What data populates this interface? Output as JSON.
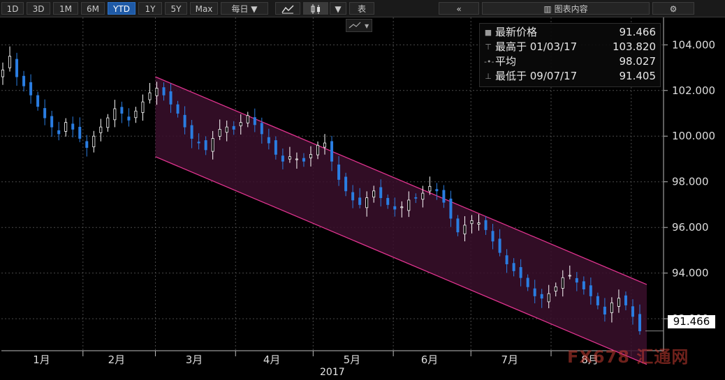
{
  "toolbar": {
    "periods": [
      "1D",
      "3D",
      "1M",
      "6M",
      "YTD",
      "1Y",
      "5Y",
      "Max"
    ],
    "active_period": "YTD",
    "frequency": "每日 ▼",
    "line_icon": "line-chart-icon",
    "candle_icon": "candlestick-icon",
    "dropdown": "▼",
    "table_label": "表",
    "collapse_icon": "double-chevron-left-icon",
    "chart_contents_label": "图表内容",
    "settings_icon": "gear-icon"
  },
  "legend": {
    "rows": [
      {
        "mark": "■",
        "label": "最新价格",
        "value": "91.466"
      },
      {
        "mark": "⊤",
        "label": "最高于 01/03/17",
        "value": "103.820"
      },
      {
        "mark": "-•-",
        "label": "平均",
        "value": "98.027"
      },
      {
        "mark": "⊥",
        "label": "最低于 09/07/17",
        "value": "91.405"
      }
    ]
  },
  "last_price_label": "91.466",
  "year_label": "2017",
  "watermark": "FX678 汇通网",
  "colors": {
    "background": "#000000",
    "up_candle": "#ffffff",
    "down_candle": "#2a7de1",
    "channel_line": "#e0338f",
    "channel_fill": "#3a0f2c",
    "grid": "#4a4a4a",
    "text": "#dcdcdc"
  },
  "chart_data": {
    "type": "candlestick",
    "title": "",
    "ylim": [
      90.6,
      105.2
    ],
    "y_ticks": [
      "104.000",
      "102.000",
      "100.000",
      "98.000",
      "96.000",
      "94.000",
      "92.000"
    ],
    "y_tick_values": [
      104,
      102,
      100,
      98,
      96,
      94,
      92
    ],
    "x_tick_labels": [
      "1月",
      "2月",
      "3月",
      "4月",
      "5月",
      "6月",
      "7月",
      "8月"
    ],
    "x_period_label": "2017",
    "x_range": [
      "2017-01-01",
      "2017-09-07"
    ],
    "grid": true,
    "last_price": 91.466,
    "closes": [
      102.9,
      103.5,
      102.6,
      102.2,
      101.8,
      101.3,
      100.8,
      100.4,
      100.1,
      100.6,
      100.3,
      99.9,
      99.5,
      100.0,
      100.4,
      100.8,
      101.2,
      101.0,
      100.7,
      101.1,
      101.5,
      101.9,
      102.1,
      101.8,
      101.4,
      101.0,
      100.4,
      99.9,
      99.7,
      99.4,
      99.9,
      100.3,
      100.4,
      100.3,
      100.6,
      100.9,
      100.5,
      100.1,
      99.7,
      99.2,
      98.9,
      99.1,
      99.0,
      98.9,
      99.2,
      99.6,
      99.7,
      98.9,
      98.1,
      97.6,
      97.2,
      97.0,
      97.3,
      97.6,
      97.3,
      97.0,
      96.8,
      96.9,
      97.2,
      97.3,
      97.5,
      97.8,
      97.6,
      97.1,
      96.4,
      95.8,
      96.1,
      96.3,
      96.2,
      95.9,
      95.4,
      94.9,
      94.4,
      94.1,
      93.8,
      93.4,
      93.0,
      92.9,
      93.1,
      93.4,
      93.8,
      93.9,
      93.6,
      93.3,
      93.0,
      92.6,
      92.2,
      92.7,
      92.9,
      92.6,
      92.1,
      91.466
    ],
    "channel_upper": [
      [
        "2017-03-01",
        102.6
      ],
      [
        "2017-09-07",
        93.5
      ]
    ],
    "channel_lower": [
      [
        "2017-03-01",
        99.1
      ],
      [
        "2017-09-07",
        90.0
      ]
    ]
  }
}
